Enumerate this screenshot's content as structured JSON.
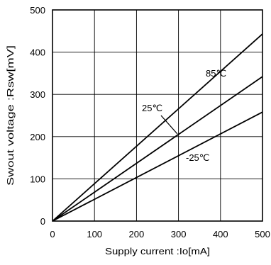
{
  "chart_data": {
    "type": "line",
    "title": "",
    "xlabel": "Supply current :Io[mA]",
    "ylabel": "Swout  voltage :Rsw[mV]",
    "xlim": [
      0,
      500
    ],
    "ylim": [
      0,
      500
    ],
    "x_ticks": [
      "0",
      "100",
      "200",
      "300",
      "400",
      "500"
    ],
    "y_ticks": [
      "0",
      "100",
      "200",
      "300",
      "400",
      "500"
    ],
    "grid": true,
    "series": [
      {
        "name": "85℃",
        "x": [
          0,
          500
        ],
        "y": [
          0,
          443
        ]
      },
      {
        "name": "25℃",
        "x": [
          0,
          500
        ],
        "y": [
          0,
          342
        ]
      },
      {
        "name": "-25℃",
        "x": [
          0,
          500
        ],
        "y": [
          0,
          258
        ]
      }
    ]
  }
}
